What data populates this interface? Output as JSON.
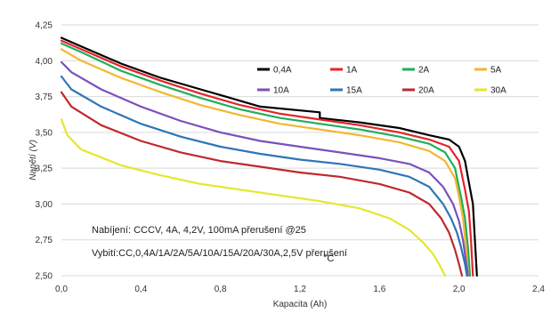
{
  "chart_data": {
    "type": "line",
    "xlabel": "Kapacita (Ah)",
    "ylabel": "Napětí (V)",
    "xlim": [
      0,
      2.4
    ],
    "ylim": [
      2.5,
      4.25
    ],
    "xticks": [
      "0,0",
      "0,4",
      "0,8",
      "1,2",
      "1,6",
      "2,0",
      "2,4"
    ],
    "yticks": [
      "2,50",
      "2,75",
      "3,00",
      "3,25",
      "3,50",
      "3,75",
      "4,00",
      "4,25"
    ],
    "grid": "horizontal",
    "legend_position": "top-right",
    "annotations": [
      "Nabíjení: CCCV, 4A, 4,2V, 100mA přerušení @25",
      "Vybití:CC,0,4A/1A/2A/5A/10A/15A/20A/30A,2,5V přerušení",
      "°C"
    ],
    "series": [
      {
        "name": "0,4A",
        "color": "#000000",
        "x": [
          0,
          0.1,
          0.3,
          0.5,
          0.7,
          0.9,
          1.0,
          1.3,
          1.3,
          1.5,
          1.7,
          1.85,
          1.95,
          2.0,
          2.03,
          2.05,
          2.07,
          2.08,
          2.09
        ],
        "y": [
          4.16,
          4.1,
          3.98,
          3.88,
          3.8,
          3.72,
          3.68,
          3.64,
          3.6,
          3.57,
          3.53,
          3.48,
          3.45,
          3.4,
          3.3,
          3.15,
          3.0,
          2.75,
          2.5
        ]
      },
      {
        "name": "1A",
        "color": "#e8222a",
        "x": [
          0,
          0.1,
          0.3,
          0.5,
          0.7,
          0.9,
          1.1,
          1.3,
          1.5,
          1.7,
          1.85,
          1.95,
          2.0,
          2.03,
          2.05,
          2.06,
          2.07
        ],
        "y": [
          4.14,
          4.08,
          3.96,
          3.86,
          3.77,
          3.69,
          3.63,
          3.59,
          3.55,
          3.5,
          3.45,
          3.4,
          3.3,
          3.1,
          2.95,
          2.75,
          2.5
        ]
      },
      {
        "name": "2A",
        "color": "#1db05a",
        "x": [
          0,
          0.1,
          0.3,
          0.5,
          0.7,
          0.9,
          1.1,
          1.3,
          1.5,
          1.7,
          1.85,
          1.93,
          1.98,
          2.01,
          2.03,
          2.045,
          2.055
        ],
        "y": [
          4.12,
          4.06,
          3.93,
          3.83,
          3.74,
          3.66,
          3.6,
          3.56,
          3.52,
          3.47,
          3.42,
          3.36,
          3.25,
          3.05,
          2.9,
          2.7,
          2.5
        ]
      },
      {
        "name": "5A",
        "color": "#f2b731",
        "x": [
          0,
          0.1,
          0.3,
          0.5,
          0.7,
          0.9,
          1.1,
          1.3,
          1.5,
          1.7,
          1.85,
          1.93,
          1.98,
          2.0,
          2.02,
          2.035,
          2.045
        ],
        "y": [
          4.08,
          4.0,
          3.88,
          3.78,
          3.69,
          3.62,
          3.56,
          3.52,
          3.48,
          3.43,
          3.37,
          3.3,
          3.18,
          3.05,
          2.9,
          2.7,
          2.5
        ]
      },
      {
        "name": "10A",
        "color": "#7b4fbf",
        "x": [
          0,
          0.05,
          0.2,
          0.4,
          0.6,
          0.8,
          1.0,
          1.2,
          1.4,
          1.6,
          1.75,
          1.85,
          1.92,
          1.97,
          2.0,
          2.02,
          2.035,
          2.045
        ],
        "y": [
          3.99,
          3.92,
          3.8,
          3.68,
          3.58,
          3.5,
          3.44,
          3.4,
          3.36,
          3.32,
          3.28,
          3.22,
          3.12,
          3.0,
          2.88,
          2.75,
          2.6,
          2.5
        ]
      },
      {
        "name": "15A",
        "color": "#2e75b6",
        "x": [
          0,
          0.05,
          0.2,
          0.4,
          0.6,
          0.8,
          1.0,
          1.2,
          1.4,
          1.6,
          1.75,
          1.85,
          1.92,
          1.96,
          1.99,
          2.01,
          2.03,
          2.04
        ],
        "y": [
          3.89,
          3.8,
          3.68,
          3.56,
          3.47,
          3.4,
          3.35,
          3.31,
          3.28,
          3.24,
          3.19,
          3.12,
          3.0,
          2.9,
          2.8,
          2.7,
          2.58,
          2.5
        ]
      },
      {
        "name": "20A",
        "color": "#c0282e",
        "x": [
          0,
          0.05,
          0.2,
          0.4,
          0.6,
          0.8,
          1.0,
          1.2,
          1.4,
          1.6,
          1.75,
          1.85,
          1.91,
          1.95,
          1.98,
          2.0,
          2.015
        ],
        "y": [
          3.78,
          3.68,
          3.55,
          3.44,
          3.36,
          3.3,
          3.26,
          3.22,
          3.19,
          3.14,
          3.08,
          3.0,
          2.9,
          2.8,
          2.68,
          2.58,
          2.5
        ]
      },
      {
        "name": "30A",
        "color": "#e6e62e",
        "x": [
          0,
          0.03,
          0.1,
          0.3,
          0.5,
          0.7,
          0.9,
          1.1,
          1.3,
          1.5,
          1.65,
          1.75,
          1.82,
          1.87,
          1.9,
          1.93
        ],
        "y": [
          3.59,
          3.48,
          3.38,
          3.27,
          3.2,
          3.14,
          3.1,
          3.06,
          3.02,
          2.97,
          2.9,
          2.82,
          2.73,
          2.65,
          2.58,
          2.5
        ]
      }
    ]
  }
}
